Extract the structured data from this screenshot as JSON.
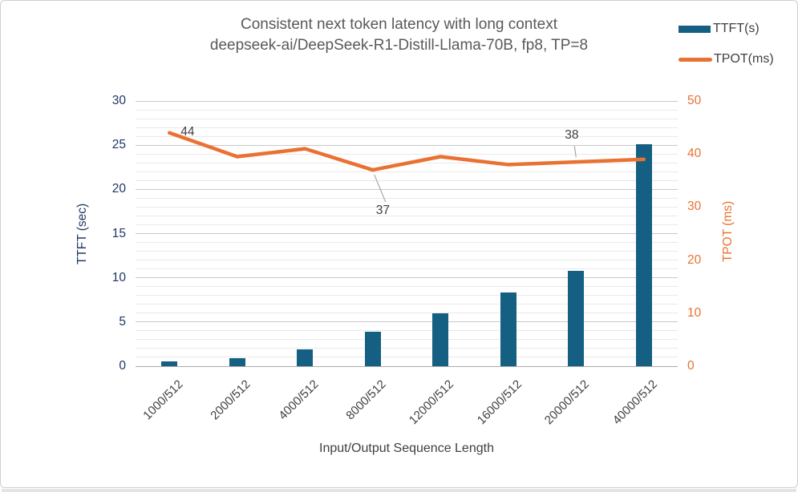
{
  "title": {
    "line1": "Consistent next token latency with long context",
    "line2": "deepseek-ai/DeepSeek-R1-Distill-Llama-70B, fp8, TP=8"
  },
  "legend": {
    "items": [
      {
        "label": "TTFT(s)",
        "swatch": "bar-swatch-icon",
        "color": "#156082"
      },
      {
        "label": "TPOT(ms)",
        "swatch": "line-swatch-icon",
        "color": "#E97132"
      }
    ]
  },
  "chart_data": {
    "type": "combo",
    "categories": [
      "1000/512",
      "2000/512",
      "4000/512",
      "8000/512",
      "12000/512",
      "16000/512",
      "20000/512",
      "40000/512"
    ],
    "series": [
      {
        "name": "TTFT(s)",
        "type": "bar",
        "axis": "left",
        "color": "#156082",
        "values": [
          0.5,
          0.9,
          1.9,
          3.9,
          6.0,
          8.3,
          10.8,
          25.1
        ]
      },
      {
        "name": "TPOT(ms)",
        "type": "line",
        "axis": "right",
        "color": "#E97132",
        "values": [
          44,
          39.5,
          41,
          37,
          39.5,
          38,
          38.5,
          39
        ],
        "data_labels": [
          {
            "index": 0,
            "text": "44"
          },
          {
            "index": 3,
            "text": "37"
          },
          {
            "index": 6,
            "text": "38"
          }
        ]
      }
    ],
    "axes": {
      "left": {
        "title": "TTFT (sec)",
        "min": 0,
        "max": 30,
        "step": 5,
        "minor_step": 1,
        "color": "#1F3864"
      },
      "right": {
        "title": "TPOT (ms)",
        "min": 0,
        "max": 50,
        "step": 10,
        "color": "#E97132"
      },
      "x": {
        "title": "Input/Output Sequence Length",
        "label_rotation_deg": 45
      }
    },
    "grid": {
      "minor": true,
      "major": true,
      "legend_position": "top-right"
    },
    "colors": {
      "grid_minor": "#E9E9E9",
      "grid_major": "#C9C9C9",
      "zero_line": "#ABABAB",
      "leader_line": "#A6A6A6",
      "title_text": "#595959",
      "label_text": "#404040"
    }
  }
}
